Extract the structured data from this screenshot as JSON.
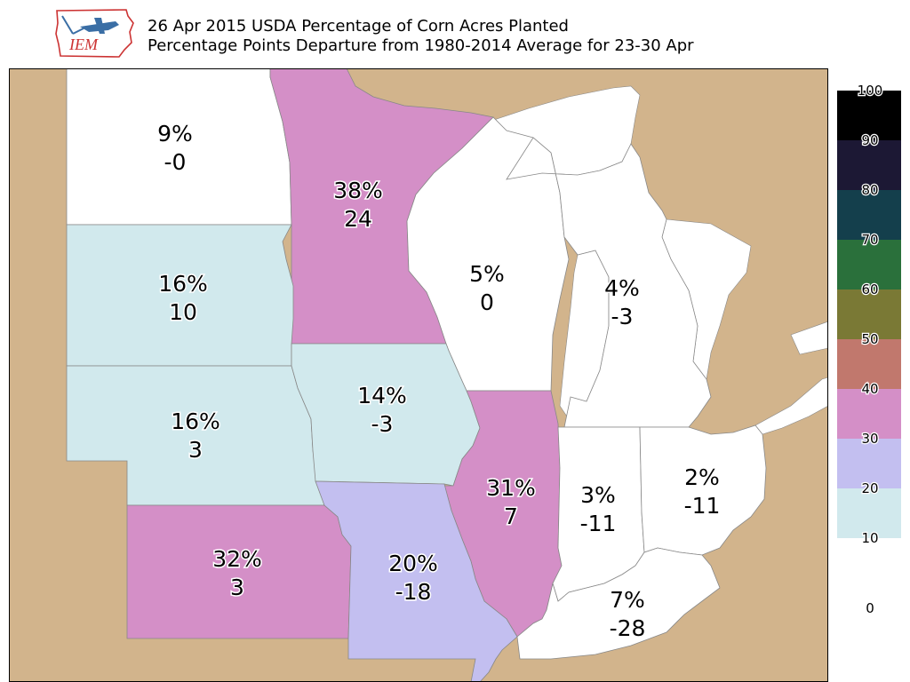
{
  "header": {
    "title_line1": "26 Apr 2015 USDA Percentage of Corn Acres Planted",
    "title_line2": "Percentage Points Departure from 1980-2014 Average for 23-30 Apr",
    "logo_text": "IEM"
  },
  "map": {
    "colors": {
      "land_background": "#d2b48c",
      "water": "#ffffff",
      "boundary": "#888888"
    },
    "states": [
      {
        "id": "ND",
        "percent": "9%",
        "departure": "-0",
        "fill": "#ffffff"
      },
      {
        "id": "MN",
        "percent": "38%",
        "departure": "24",
        "fill": "#d48fc7"
      },
      {
        "id": "SD",
        "percent": "16%",
        "departure": "10",
        "fill": "#d1e9ed"
      },
      {
        "id": "WI",
        "percent": "5%",
        "departure": "0",
        "fill": "#ffffff"
      },
      {
        "id": "MI",
        "percent": "4%",
        "departure": "-3",
        "fill": "#ffffff"
      },
      {
        "id": "NE",
        "percent": "16%",
        "departure": "3",
        "fill": "#d1e9ed"
      },
      {
        "id": "IA",
        "percent": "14%",
        "departure": "-3",
        "fill": "#d1e9ed"
      },
      {
        "id": "IL",
        "percent": "31%",
        "departure": "7",
        "fill": "#d48fc7"
      },
      {
        "id": "IN",
        "percent": "3%",
        "departure": "-11",
        "fill": "#ffffff"
      },
      {
        "id": "OH",
        "percent": "2%",
        "departure": "-11",
        "fill": "#ffffff"
      },
      {
        "id": "KS",
        "percent": "32%",
        "departure": "3",
        "fill": "#d48fc7"
      },
      {
        "id": "MO",
        "percent": "20%",
        "departure": "-18",
        "fill": "#c3bff0"
      },
      {
        "id": "KY",
        "percent": "7%",
        "departure": "-28",
        "fill": "#ffffff"
      }
    ]
  },
  "legend": {
    "bins": [
      {
        "label": "0",
        "color": "#ffffff"
      },
      {
        "label": "10",
        "color": "#d1e9ed"
      },
      {
        "label": "20",
        "color": "#c3bff0"
      },
      {
        "label": "30",
        "color": "#d48fc7"
      },
      {
        "label": "40",
        "color": "#c1786d"
      },
      {
        "label": "50",
        "color": "#7a7935"
      },
      {
        "label": "60",
        "color": "#2a703b"
      },
      {
        "label": "70",
        "color": "#143f4c"
      },
      {
        "label": "80",
        "color": "#1c1834"
      },
      {
        "label": "90",
        "color": "#000000"
      },
      {
        "label": "100",
        "color": ""
      }
    ]
  }
}
